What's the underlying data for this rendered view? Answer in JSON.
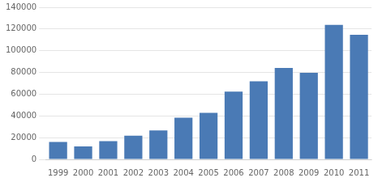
{
  "chart_data": {
    "type": "bar",
    "categories": [
      "1999",
      "2000",
      "2001",
      "2002",
      "2003",
      "2004",
      "2005",
      "2006",
      "2007",
      "2008",
      "2009",
      "2010",
      "2011"
    ],
    "values": [
      16028,
      11999,
      16730,
      21810,
      26556,
      38335,
      42829,
      62339,
      71810,
      84170,
      79597,
      123721,
      114597
    ],
    "color": "#4a7ab5",
    "ylim": [
      0,
      140000
    ],
    "yticks": [
      0,
      20000,
      40000,
      60000,
      80000,
      100000,
      120000,
      140000
    ],
    "grid": true
  }
}
